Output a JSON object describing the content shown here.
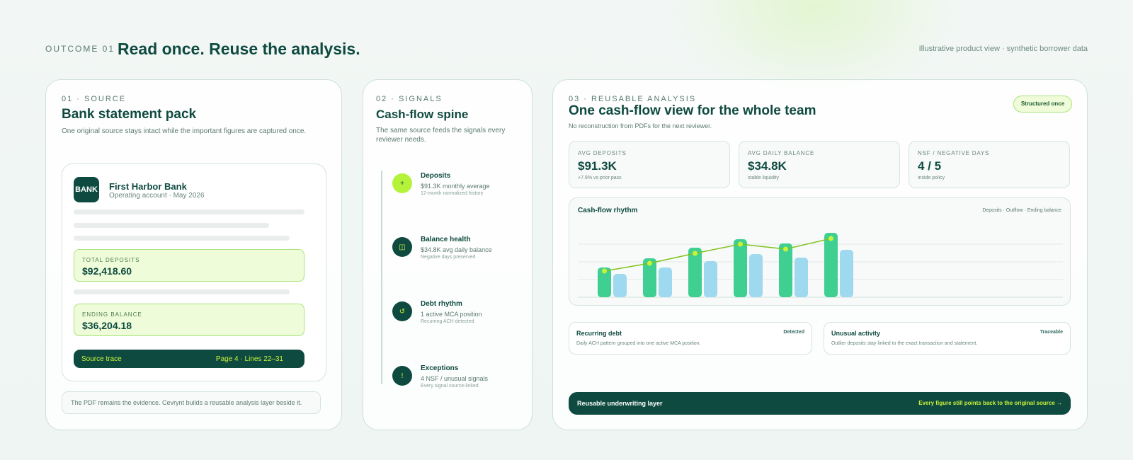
{
  "header": {
    "eyebrow": "OUTCOME 01",
    "headline": "Read once. Reuse the analysis.",
    "note": "Illustrative product view · synthetic borrower data"
  },
  "source": {
    "label": "01 · SOURCE",
    "title": "Bank statement pack",
    "desc": "One original source stays intact while the important figures are captured once.",
    "bank_logo": "BANK",
    "bank_name": "First Harbor Bank",
    "bank_sub": "Operating account · May 2026",
    "total_deposits_label": "TOTAL DEPOSITS",
    "total_deposits_value": "$92,418.60",
    "ending_balance_label": "ENDING BALANCE",
    "ending_balance_value": "$36,204.18",
    "trace_label": "Source trace",
    "trace_ref": "Page 4 · Lines 22–31",
    "foot_note": "The PDF remains the evidence. Cevrynt builds a reusable analysis layer beside it."
  },
  "signals": {
    "label": "02 · SIGNALS",
    "title": "Cash-flow spine",
    "desc": "The same source feeds the signals every reviewer needs.",
    "items": [
      {
        "icon": "plus-icon",
        "glyph": "+",
        "title": "Deposits",
        "sub": "$91.3K monthly average",
        "note": "12-month normalized history"
      },
      {
        "icon": "balance-icon",
        "glyph": "◫",
        "title": "Balance health",
        "sub": "$34.8K avg daily balance",
        "note": "Negative days preserved"
      },
      {
        "icon": "refresh-icon",
        "glyph": "↺",
        "title": "Debt rhythm",
        "sub": "1 active MCA position",
        "note": "Recurring ACH detected"
      },
      {
        "icon": "alert-icon",
        "glyph": "!",
        "title": "Exceptions",
        "sub": "4 NSF / unusual signals",
        "note": "Every signal source-linked"
      }
    ]
  },
  "analysis": {
    "label": "03 · REUSABLE ANALYSIS",
    "title": "One cash-flow view for the whole team",
    "desc": "No reconstruction from PDFs for the next reviewer.",
    "badge": "Structured once",
    "kpis": [
      {
        "label": "AVG DEPOSITS",
        "value": "$91.3K",
        "note": "+7.9% vs prior pass"
      },
      {
        "label": "AVG DAILY BALANCE",
        "value": "$34.8K",
        "note": "stable liquidity"
      },
      {
        "label": "NSF / NEGATIVE DAYS",
        "value": "4 / 5",
        "note": "inside policy"
      }
    ],
    "chart_title": "Cash-flow rhythm",
    "chart_legend": "Deposits · Outflow · Ending balance",
    "insights": [
      {
        "title": "Recurring debt",
        "status": "Detected",
        "desc": "Daily ACH pattern grouped into one active MCA position."
      },
      {
        "title": "Unusual activity",
        "status": "Traceable",
        "desc": "Outlier deposits stay linked to the exact transaction and statement."
      }
    ],
    "layer_label": "Reusable underwriting layer",
    "layer_note": "Every figure still points back to the original source →"
  },
  "chart_data": {
    "type": "bar",
    "title": "Cash-flow rhythm",
    "categories": [
      "",
      "",
      "",
      "",
      "",
      ""
    ],
    "ylim": [
      0,
      100
    ],
    "series": [
      {
        "name": "Deposits",
        "values": [
          42,
          55,
          70,
          82,
          76,
          91
        ],
        "color": "#3fcf91"
      },
      {
        "name": "Outflow",
        "values": [
          33,
          42,
          51,
          61,
          56,
          67
        ],
        "color": "#9fd9ef"
      },
      {
        "name": "Ending balance",
        "values": [
          37,
          48,
          62,
          75,
          68,
          83
        ],
        "color": "#7fc21e",
        "kind": "line"
      }
    ],
    "grid": true,
    "legend": "top-right"
  }
}
